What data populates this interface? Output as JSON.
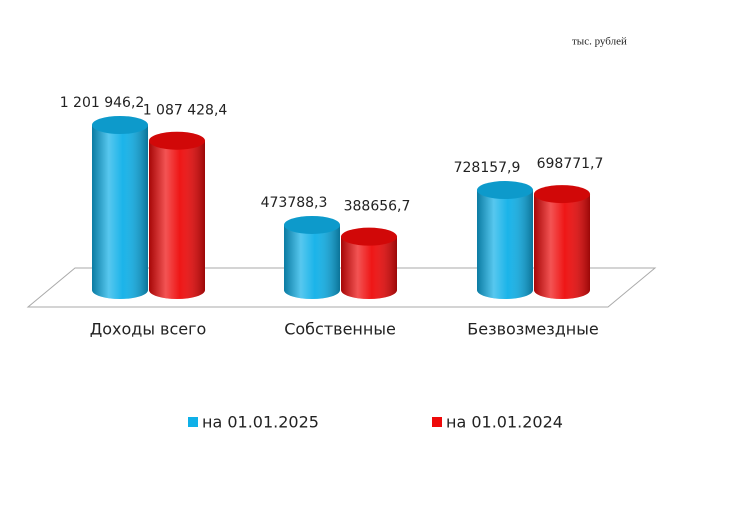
{
  "chart_data": {
    "type": "cylinder",
    "subtitle": "тыс. рублей",
    "categories": [
      "Доходы всего",
      "Собственные",
      "Безвозмездные"
    ],
    "series": [
      {
        "name": "на 01.01.2025",
        "color": "#0fb0e8",
        "values": [
          1201946.2,
          473788.3,
          728157.9
        ],
        "value_labels": [
          "1 201 946,2",
          "473788,3",
          "728157,9"
        ]
      },
      {
        "name": "на 01.01.2024",
        "color": "#ee0a0a",
        "values": [
          1087428.4,
          388656.7,
          698771.7
        ],
        "value_labels": [
          "1 087 428,4",
          "388656,7",
          "698771,7"
        ]
      }
    ],
    "legend": "bottom"
  }
}
